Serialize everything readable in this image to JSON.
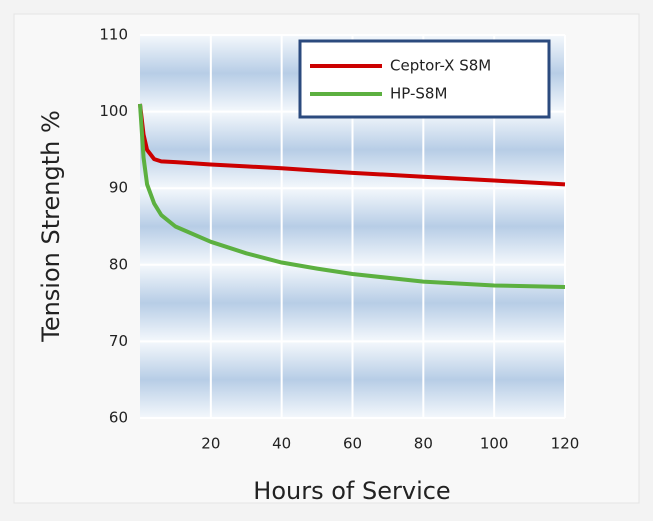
{
  "chart_data": {
    "type": "line",
    "xlabel": "Hours of Service",
    "ylabel": "Tension Strength %",
    "x": [
      0,
      1,
      2,
      4,
      6,
      10,
      20,
      30,
      40,
      50,
      60,
      80,
      100,
      120
    ],
    "series": [
      {
        "name": "Ceptor-X S8M",
        "color": "#cc0000",
        "values": [
          101,
          97,
          95,
          93.8,
          93.5,
          93.4,
          93.1,
          92.85,
          92.6,
          92.3,
          92.0,
          91.5,
          91.0,
          90.5
        ]
      },
      {
        "name": "HP-S8M",
        "color": "#5cb040",
        "values": [
          101,
          94,
          90.5,
          88,
          86.5,
          85,
          83,
          81.5,
          80.3,
          79.5,
          78.8,
          77.8,
          77.3,
          77.1
        ]
      }
    ],
    "xlim": [
      0,
      120
    ],
    "xticks": [
      20,
      40,
      60,
      80,
      100,
      120
    ],
    "ylim": [
      60,
      110
    ],
    "yticks": [
      60,
      70,
      80,
      90,
      100,
      110
    ],
    "grid": true,
    "legend": "upper right"
  }
}
